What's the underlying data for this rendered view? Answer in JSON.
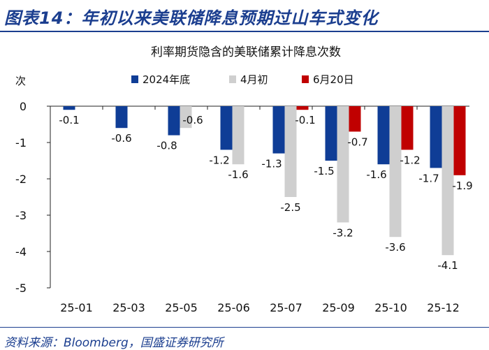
{
  "header": {
    "title": "图表14：年初以来美联储降息预期过山车式变化"
  },
  "source": {
    "text": "资料来源：Bloomberg，国盛证券研究所"
  },
  "colors": {
    "brand": "#1b3e8f",
    "series_2024": "#0f3d96",
    "series_apr": "#cfcfcf",
    "series_jun": "#c00000"
  },
  "chart_data": {
    "type": "bar",
    "title": "利率期货隐含的美联储累计降息次数",
    "ylabel": "次",
    "xlabel": "",
    "ylim": [
      -5,
      0
    ],
    "yticks": [
      0,
      -1,
      -2,
      -3,
      -4,
      -5
    ],
    "categories": [
      "25-01",
      "25-03",
      "25-05",
      "25-06",
      "25-07",
      "25-09",
      "25-10",
      "25-12"
    ],
    "legend_position": "top",
    "series": [
      {
        "name": "2024年底",
        "values": [
          -0.1,
          -0.6,
          -0.8,
          -1.2,
          -1.3,
          -1.5,
          -1.6,
          -1.7
        ]
      },
      {
        "name": "4月初",
        "values": [
          null,
          null,
          -0.6,
          -1.6,
          -2.5,
          -3.2,
          -3.6,
          -4.1
        ]
      },
      {
        "name": "6月20日",
        "values": [
          null,
          null,
          null,
          null,
          -0.1,
          -0.7,
          -1.2,
          -1.9
        ]
      }
    ]
  }
}
